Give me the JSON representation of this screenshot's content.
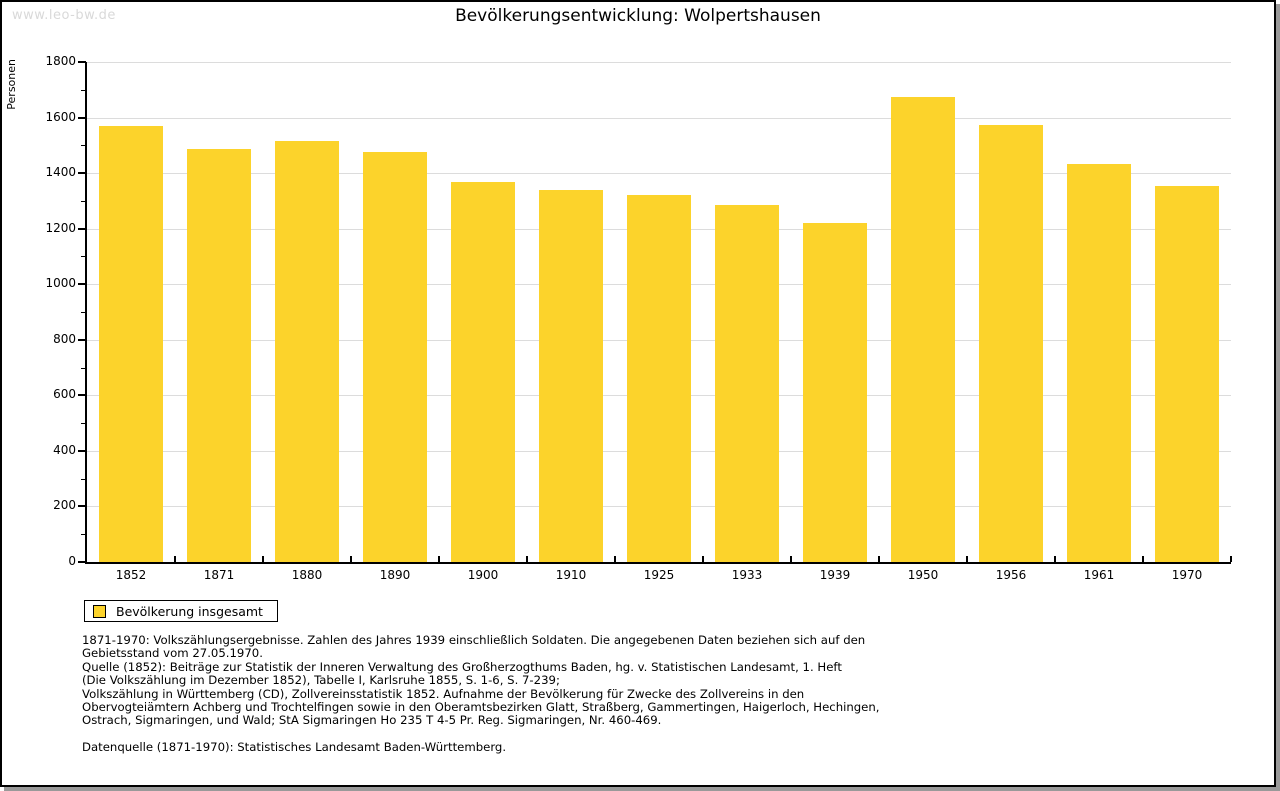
{
  "page": {
    "watermark": "www.leo-bw.de"
  },
  "chart_data": {
    "type": "bar",
    "title": "Bevölkerungsentwicklung: Wolpertshausen",
    "xlabel": "",
    "ylabel": "Personen",
    "categories": [
      "1852",
      "1871",
      "1880",
      "1890",
      "1900",
      "1910",
      "1925",
      "1933",
      "1939",
      "1950",
      "1956",
      "1961",
      "1970"
    ],
    "values": [
      1568,
      1488,
      1515,
      1477,
      1368,
      1340,
      1322,
      1284,
      1221,
      1673,
      1573,
      1434,
      1353
    ],
    "ylim": [
      0,
      1800
    ],
    "ytick_step": 200,
    "ytick_minor_step": 100,
    "grid": "horizontal-major",
    "legend_position": "bottom-left",
    "legend_entries": [
      "Bevölkerung insgesamt"
    ],
    "bar_color": "#FCD32B",
    "gridline_color": "#dcdcdc",
    "axis_color": "#000000"
  },
  "legend": {
    "label": "Bevölkerung insgesamt"
  },
  "footnotes": {
    "lines": [
      "1871-1970: Volkszählungsergebnisse. Zahlen des Jahres 1939 einschließlich Soldaten. Die angegebenen Daten beziehen sich auf den",
      "Gebietsstand vom 27.05.1970.",
      "Quelle (1852): Beiträge zur Statistik der Inneren Verwaltung des Großherzogthums Baden, hg. v. Statistischen Landesamt, 1. Heft",
      "(Die Volkszählung im Dezember 1852), Tabelle I, Karlsruhe 1855, S. 1-6, S. 7-239;",
      "Volkszählung in Württemberg (CD), Zollvereinsstatistik 1852. Aufnahme der Bevölkerung für Zwecke des Zollvereins in den",
      "Obervogteiämtern Achberg und Trochtelfingen sowie in den Oberamtsbezirken Glatt, Straßberg, Gammertingen, Haigerloch, Hechingen,",
      "Ostrach, Sigmaringen, und Wald; StA Sigmaringen Ho 235 T 4-5 Pr. Reg. Sigmaringen, Nr. 460-469."
    ],
    "datasource": "Datenquelle (1871-1970): Statistisches Landesamt Baden-Württemberg."
  }
}
